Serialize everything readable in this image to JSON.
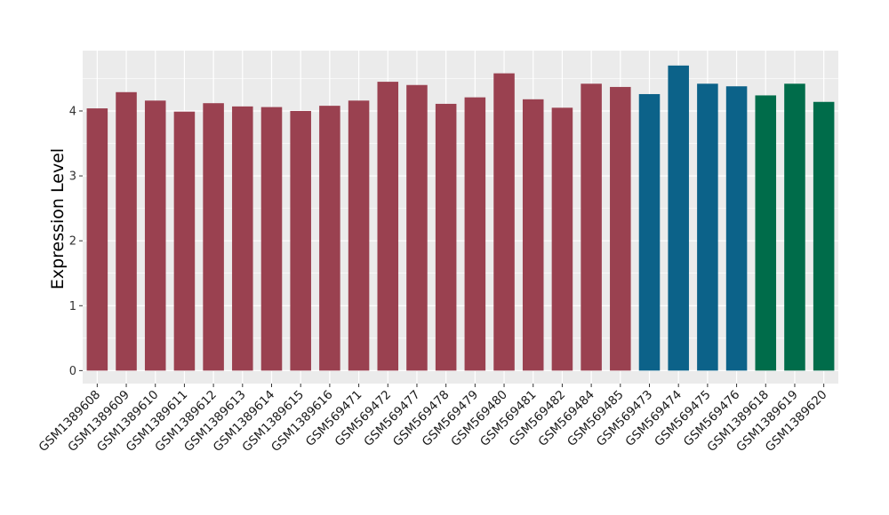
{
  "chart_data": {
    "type": "bar",
    "title": "",
    "xlabel": "",
    "ylabel": "Expression Level",
    "ylim": [
      -0.2,
      4.93
    ],
    "yticks": [
      0,
      1,
      2,
      3,
      4
    ],
    "grid": true,
    "colors": {
      "group1": "#9a4150",
      "group2": "#0c6289",
      "group3": "#006c4a",
      "panel": "#ebebeb",
      "gridline": "#ffffff"
    },
    "categories": [
      "GSM1389608",
      "GSM1389609",
      "GSM1389610",
      "GSM1389611",
      "GSM1389612",
      "GSM1389613",
      "GSM1389614",
      "GSM1389615",
      "GSM1389616",
      "GSM569471",
      "GSM569472",
      "GSM569477",
      "GSM569478",
      "GSM569479",
      "GSM569480",
      "GSM569481",
      "GSM569482",
      "GSM569484",
      "GSM569485",
      "GSM569473",
      "GSM569474",
      "GSM569475",
      "GSM569476",
      "GSM1389618",
      "GSM1389619",
      "GSM1389620"
    ],
    "values": [
      4.04,
      4.29,
      4.16,
      3.99,
      4.12,
      4.07,
      4.06,
      4.0,
      4.08,
      4.16,
      4.45,
      4.4,
      4.11,
      4.21,
      4.58,
      4.18,
      4.05,
      4.42,
      4.37,
      4.26,
      4.7,
      4.42,
      4.38,
      4.24,
      4.42,
      4.14
    ],
    "groups": [
      "group1",
      "group1",
      "group1",
      "group1",
      "group1",
      "group1",
      "group1",
      "group1",
      "group1",
      "group1",
      "group1",
      "group1",
      "group1",
      "group1",
      "group1",
      "group1",
      "group1",
      "group1",
      "group1",
      "group2",
      "group2",
      "group2",
      "group2",
      "group3",
      "group3",
      "group3"
    ]
  }
}
